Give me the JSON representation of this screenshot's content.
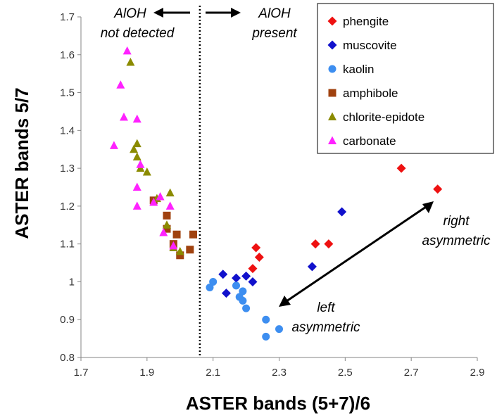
{
  "chart_data": {
    "type": "scatter",
    "title": "",
    "xlabel": "ASTER bands (5+7)/6",
    "ylabel": "ASTER bands 5/7",
    "xlim": [
      1.7,
      2.9
    ],
    "ylim": [
      0.8,
      1.7
    ],
    "xticks": [
      "1.7",
      "1.9",
      "2.1",
      "2.3",
      "2.5",
      "2.7",
      "2.9"
    ],
    "yticks": [
      "0.8",
      "0.9",
      "1",
      "1.1",
      "1.2",
      "1.3",
      "1.4",
      "1.5",
      "1.6",
      "1.7"
    ],
    "grid": false,
    "legend_position": "top-right",
    "divider_x": 2.06,
    "annotations": {
      "left_top": "AlOH",
      "left_bottom": "not detected",
      "right_top": "AlOH",
      "right_bottom": "present",
      "right_asym_1": "right",
      "right_asym_2": "asymmetric",
      "left_asym_1": "left",
      "left_asym_2": "asymmetric"
    },
    "series": [
      {
        "name": "phengite",
        "marker": "diamond",
        "color": "#ee1111",
        "points": [
          [
            2.22,
            1.035
          ],
          [
            2.23,
            1.09
          ],
          [
            2.24,
            1.065
          ],
          [
            2.41,
            1.1
          ],
          [
            2.45,
            1.1
          ],
          [
            2.67,
            1.3
          ],
          [
            2.78,
            1.245
          ]
        ]
      },
      {
        "name": "muscovite",
        "marker": "diamond",
        "color": "#1111cc",
        "points": [
          [
            2.13,
            1.02
          ],
          [
            2.14,
            0.97
          ],
          [
            2.17,
            1.01
          ],
          [
            2.2,
            1.015
          ],
          [
            2.22,
            1.0
          ],
          [
            2.4,
            1.04
          ],
          [
            2.49,
            1.185
          ]
        ]
      },
      {
        "name": "kaolin",
        "marker": "circle",
        "color": "#3d8ef0",
        "points": [
          [
            2.09,
            0.985
          ],
          [
            2.1,
            1.0
          ],
          [
            2.17,
            0.99
          ],
          [
            2.18,
            0.96
          ],
          [
            2.19,
            0.95
          ],
          [
            2.19,
            0.975
          ],
          [
            2.2,
            0.93
          ],
          [
            2.26,
            0.9
          ],
          [
            2.26,
            0.855
          ],
          [
            2.3,
            0.875
          ]
        ]
      },
      {
        "name": "amphibole",
        "marker": "square",
        "color": "#a0420f",
        "points": [
          [
            1.92,
            1.215
          ],
          [
            1.96,
            1.175
          ],
          [
            1.96,
            1.14
          ],
          [
            1.98,
            1.1
          ],
          [
            1.99,
            1.125
          ],
          [
            2.0,
            1.07
          ],
          [
            2.03,
            1.085
          ],
          [
            2.04,
            1.125
          ]
        ]
      },
      {
        "name": "chlorite-epidote",
        "marker": "triangle",
        "color": "#8b8b00",
        "points": [
          [
            1.85,
            1.58
          ],
          [
            1.86,
            1.35
          ],
          [
            1.87,
            1.365
          ],
          [
            1.87,
            1.33
          ],
          [
            1.88,
            1.3
          ],
          [
            1.9,
            1.29
          ],
          [
            1.93,
            1.22
          ],
          [
            1.96,
            1.15
          ],
          [
            1.97,
            1.235
          ],
          [
            1.98,
            1.09
          ],
          [
            2.0,
            1.08
          ]
        ]
      },
      {
        "name": "carbonate",
        "marker": "triangle",
        "color": "#ff22ff",
        "points": [
          [
            1.8,
            1.36
          ],
          [
            1.82,
            1.52
          ],
          [
            1.83,
            1.435
          ],
          [
            1.84,
            1.61
          ],
          [
            1.87,
            1.43
          ],
          [
            1.87,
            1.25
          ],
          [
            1.87,
            1.2
          ],
          [
            1.88,
            1.31
          ],
          [
            1.92,
            1.21
          ],
          [
            1.94,
            1.225
          ],
          [
            1.95,
            1.13
          ],
          [
            1.97,
            1.2
          ],
          [
            1.98,
            1.095
          ]
        ]
      }
    ]
  }
}
